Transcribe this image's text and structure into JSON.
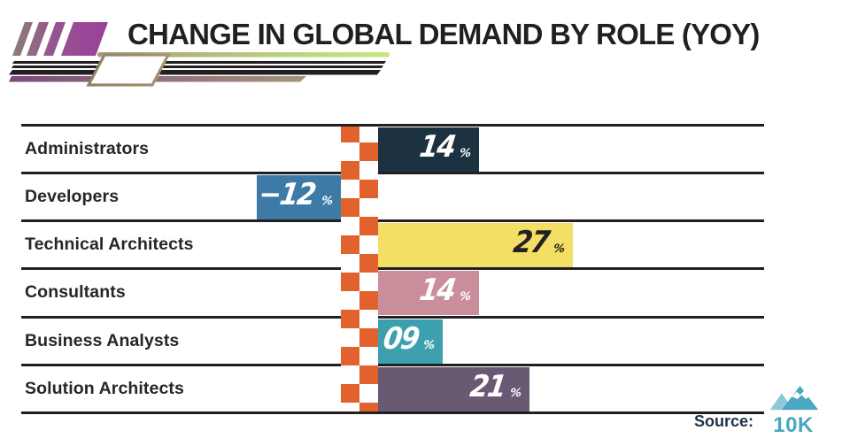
{
  "header": {
    "title": "CHANGE IN GLOBAL DEMAND BY ROLE (YOY)"
  },
  "chart_data": {
    "type": "bar",
    "orientation": "horizontal",
    "title": "CHANGE IN GLOBAL DEMAND BY ROLE (YOY)",
    "unit": "%",
    "categories": [
      "Administrators",
      "Developers",
      "Technical Architects",
      "Consultants",
      "Business Analysts",
      "Solution Architects"
    ],
    "values": [
      14,
      -12,
      27,
      14,
      9,
      21
    ],
    "value_labels": [
      "14",
      "−12",
      "27",
      "14",
      "09",
      "21"
    ],
    "bar_colors": [
      "#1c3240",
      "#3d7ba6",
      "#f3df63",
      "#ca8e9b",
      "#3da0af",
      "#695a73"
    ],
    "value_text_colors": [
      "#ffffff",
      "#ffffff",
      "#242021",
      "#ffffff",
      "#ffffff",
      "#ffffff"
    ],
    "xlim": [
      -12,
      27
    ],
    "zero_axis_style": "orange-white checkered flag strip",
    "grid": "horizontal row separator lines",
    "legend": "none"
  },
  "footer": {
    "source_label": "Source:",
    "brand": "10K",
    "brand_icon": "mountain-logo-icon",
    "brand_color": "#4aa6c2"
  },
  "colors": {
    "checker_orange": "#e2622d",
    "separator_line": "#211f20",
    "title_text": "#221f20",
    "label_text": "#262626",
    "accent_green": "#c6e87f",
    "accent_purple": "#9a3f9c"
  }
}
